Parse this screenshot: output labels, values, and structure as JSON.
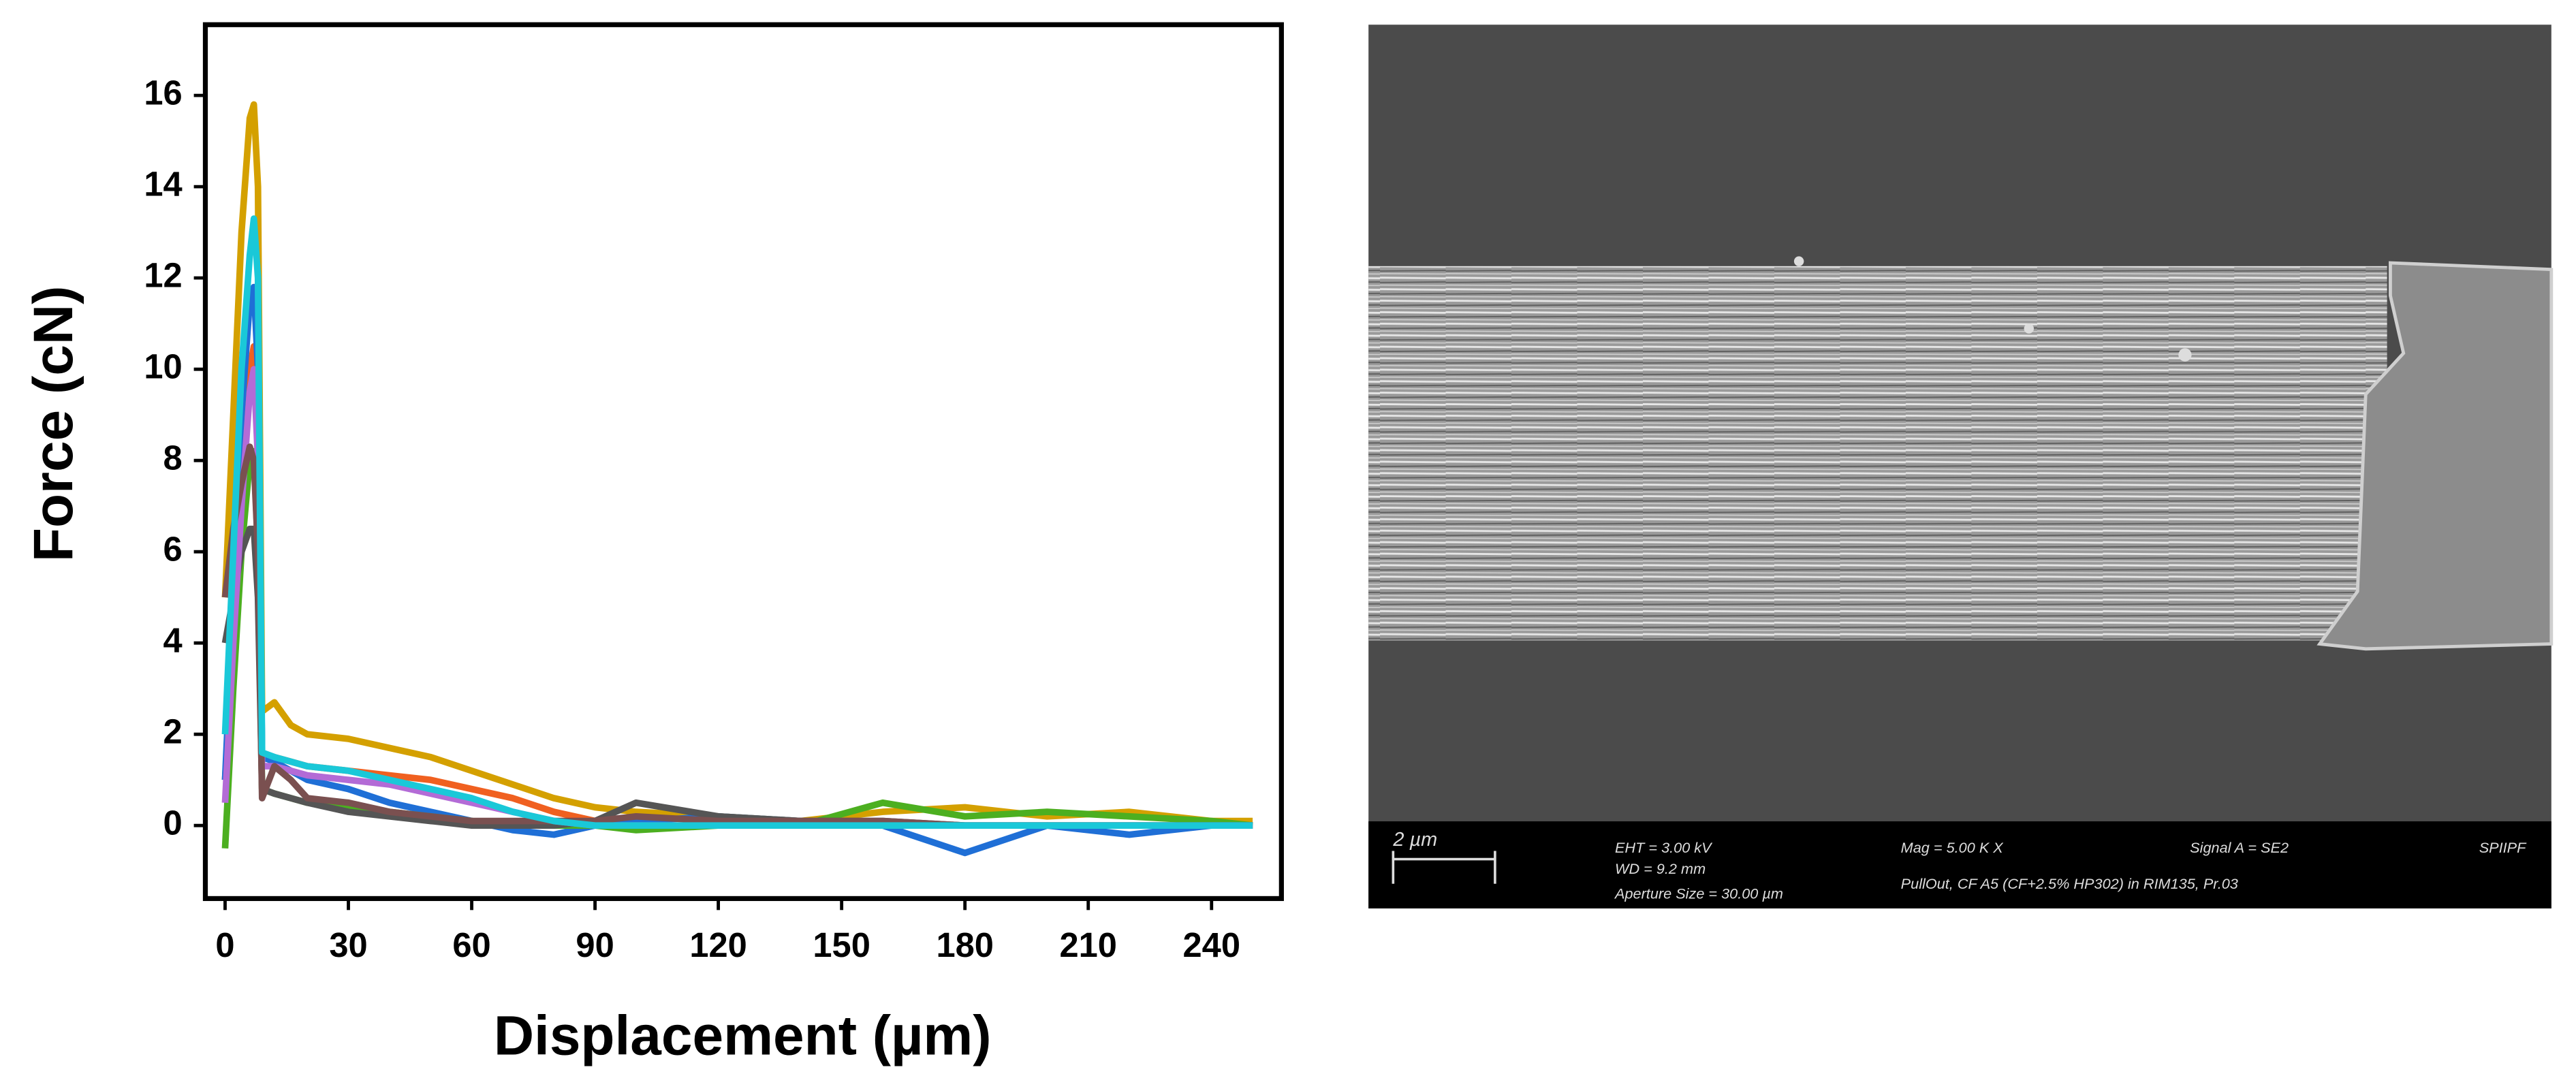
{
  "chart_data": {
    "type": "line",
    "xlabel": "Displacement (µm)",
    "ylabel": "Force (cN)",
    "x": [
      0,
      2,
      4,
      6,
      7,
      8,
      9,
      12,
      16,
      20,
      30,
      40,
      50,
      60,
      70,
      80,
      90,
      100,
      120,
      140,
      160,
      180,
      200,
      220,
      240,
      250
    ],
    "series": [
      {
        "color": "#d4a000",
        "values": [
          5,
          9,
          13,
          15.5,
          15.8,
          14,
          2.5,
          2.7,
          2.2,
          2,
          1.9,
          1.7,
          1.5,
          1.2,
          0.9,
          0.6,
          0.4,
          0.3,
          0.2,
          0.1,
          0.3,
          0.4,
          0.2,
          0.3,
          0.1,
          0.1
        ]
      },
      {
        "color": "#f06020",
        "values": [
          1,
          4,
          8,
          10,
          10.5,
          9,
          1.5,
          1.5,
          1.4,
          1.3,
          1.2,
          1.1,
          1.0,
          0.8,
          0.6,
          0.3,
          0.1,
          0,
          0,
          0,
          0,
          0,
          0,
          0,
          0,
          0
        ]
      },
      {
        "color": "#1f6fd6",
        "values": [
          1,
          5,
          9,
          11.5,
          11.8,
          10,
          1.5,
          1.4,
          1.2,
          1.0,
          0.8,
          0.5,
          0.3,
          0.1,
          -0.1,
          -0.2,
          0,
          0.1,
          0.2,
          0.1,
          0,
          -0.6,
          0,
          -0.2,
          0,
          0
        ]
      },
      {
        "color": "#4caf20",
        "values": [
          -0.5,
          3,
          6,
          8,
          8.2,
          6,
          0.8,
          0.7,
          0.6,
          0.5,
          0.4,
          0.3,
          0.2,
          0.1,
          0,
          0,
          0,
          -0.1,
          0,
          0,
          0.5,
          0.2,
          0.3,
          0.2,
          0.1,
          0
        ]
      },
      {
        "color": "#555555",
        "values": [
          4,
          5,
          6,
          6.5,
          6.5,
          5,
          0.8,
          0.7,
          0.6,
          0.5,
          0.3,
          0.2,
          0.1,
          0,
          0,
          0,
          0.1,
          0.5,
          0.2,
          0.1,
          0.1,
          0,
          0,
          0,
          0,
          0
        ]
      },
      {
        "color": "#b36bd6",
        "values": [
          0.5,
          4,
          7,
          9.5,
          10,
          8,
          1.3,
          1.3,
          1.2,
          1.1,
          1,
          0.9,
          0.7,
          0.5,
          0.3,
          0.1,
          0,
          0,
          0,
          0,
          0,
          0,
          0,
          0,
          0,
          0
        ]
      },
      {
        "color": "#7a5050",
        "values": [
          5,
          6.5,
          7.5,
          8.3,
          8,
          6,
          0.6,
          1.3,
          1.0,
          0.6,
          0.5,
          0.3,
          0.2,
          0.1,
          0.1,
          0.1,
          0.1,
          0.2,
          0.1,
          0.1,
          0.1,
          0,
          0,
          0,
          0,
          0
        ]
      },
      {
        "color": "#1ac8d8",
        "values": [
          2,
          6,
          10,
          12.5,
          13.3,
          12,
          1.6,
          1.5,
          1.4,
          1.3,
          1.2,
          1.0,
          0.8,
          0.6,
          0.3,
          0.1,
          0,
          0,
          0,
          0,
          0,
          0,
          0,
          0,
          0,
          0
        ]
      }
    ],
    "xlim": [
      -4.8,
      257
    ],
    "ylim": [
      -1.6,
      17.55
    ],
    "xticks": [
      0,
      30,
      60,
      90,
      120,
      150,
      180,
      210,
      240
    ],
    "yticks": [
      0,
      2,
      4,
      6,
      8,
      10,
      12,
      14,
      16
    ]
  },
  "sem_image": {
    "scale_bar": "2 µm",
    "eht": "EHT =  3.00 kV",
    "wd": "WD =  9.2 mm",
    "aperture": "Aperture Size = 30.00 µm",
    "mag": "Mag =    5.00 K X",
    "sample": "PullOut, CF A5 (CF+2.5% HP302) in RIM135, Pr.03",
    "signal": "Signal A = SE2",
    "lab": "SPIIPF"
  }
}
